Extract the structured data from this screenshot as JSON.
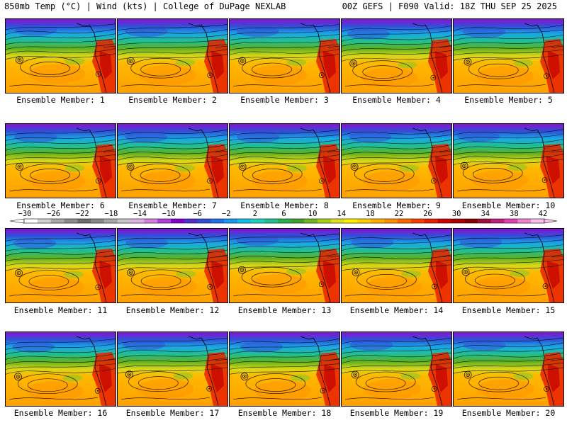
{
  "header": {
    "left": "850mb Temp (°C) | Wind (kts) | College of DuPage NEXLAB",
    "right": "00Z GEFS | F090 Valid: 18Z THU SEP 25 2025"
  },
  "caption_label": "Ensemble Member:",
  "members": [
    "1",
    "2",
    "3",
    "4",
    "5",
    "6",
    "7",
    "8",
    "9",
    "10",
    "11",
    "12",
    "13",
    "14",
    "15",
    "16",
    "17",
    "18",
    "19",
    "20"
  ],
  "colorbar": {
    "labels": [
      "−30",
      "−26",
      "−22",
      "−18",
      "−14",
      "−10",
      "−6",
      "−2",
      "2",
      "6",
      "10",
      "14",
      "18",
      "22",
      "26",
      "30",
      "34",
      "38",
      "42"
    ],
    "colors": [
      "#ffffff",
      "#d2d2d2",
      "#a9a9a9",
      "#8c8c8c",
      "#6e6e6e",
      "#8a8a8a",
      "#a8a8a8",
      "#c8c8c8",
      "#e0b0e8",
      "#d080e0",
      "#b040d8",
      "#8000d0",
      "#5030c8",
      "#3050d8",
      "#2070e8",
      "#1898f0",
      "#10c0e8",
      "#20d0c0",
      "#20c090",
      "#28b050",
      "#40a030",
      "#70b820",
      "#a8d018",
      "#e0e020",
      "#fff000",
      "#ffd000",
      "#ffb000",
      "#ff9000",
      "#ff6800",
      "#f84000",
      "#e82000",
      "#d00000",
      "#a80000",
      "#880000",
      "#a01040",
      "#c02080",
      "#e040b0",
      "#f080d0",
      "#ffc0f0"
    ]
  }
}
